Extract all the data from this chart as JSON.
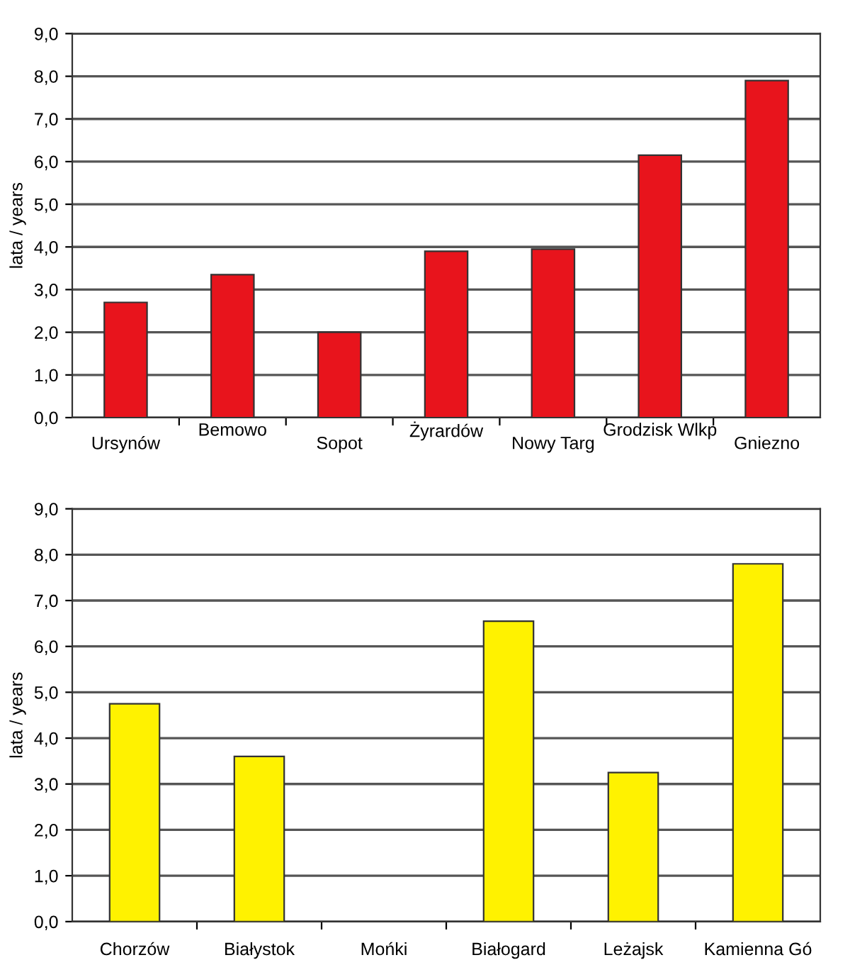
{
  "chart_data": [
    {
      "type": "bar",
      "ylabel": "lata / years",
      "categories": [
        "Ursynów",
        "Bemowo",
        "Sopot",
        "Żyrardów",
        "Nowy Targ",
        "Grodzisk Wlkp",
        "Gniezno"
      ],
      "values": [
        2.7,
        3.35,
        2.0,
        3.9,
        3.95,
        6.15,
        7.9
      ],
      "color": "#e8141c",
      "ylim": [
        0,
        9
      ],
      "yticks": [
        {
          "value": 0,
          "label": "0,0"
        },
        {
          "value": 1,
          "label": "1,0"
        },
        {
          "value": 2,
          "label": "2,0"
        },
        {
          "value": 3,
          "label": "3,0"
        },
        {
          "value": 4,
          "label": "4,0"
        },
        {
          "value": 5,
          "label": "5,0"
        },
        {
          "value": 6,
          "label": "6,0"
        },
        {
          "value": 7,
          "label": "7,0"
        },
        {
          "value": 8,
          "label": "8,0"
        },
        {
          "value": 9,
          "label": "9,0"
        }
      ],
      "grid": "y"
    },
    {
      "type": "bar",
      "ylabel": "lata / years",
      "categories": [
        "Chorzów",
        "Białystok",
        "Mońki",
        "Białogard",
        "Leżajsk",
        "Kamienna Gó"
      ],
      "values": [
        4.75,
        3.6,
        null,
        6.55,
        3.25,
        7.8
      ],
      "color": "#fff200",
      "ylim": [
        0,
        9
      ],
      "yticks": [
        {
          "value": 0,
          "label": "0,0"
        },
        {
          "value": 1,
          "label": "1,0"
        },
        {
          "value": 2,
          "label": "2,0"
        },
        {
          "value": 3,
          "label": "3,0"
        },
        {
          "value": 4,
          "label": "4,0"
        },
        {
          "value": 5,
          "label": "5,0"
        },
        {
          "value": 6,
          "label": "6,0"
        },
        {
          "value": 7,
          "label": "7,0"
        },
        {
          "value": 8,
          "label": "8,0"
        },
        {
          "value": 9,
          "label": "9,0"
        }
      ],
      "grid": "y"
    }
  ]
}
